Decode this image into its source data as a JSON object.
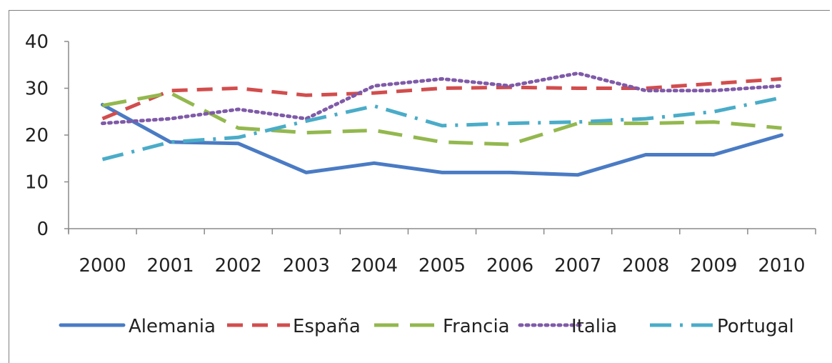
{
  "chart_data": {
    "type": "line",
    "categories": [
      "2000",
      "2001",
      "2002",
      "2003",
      "2004",
      "2005",
      "2006",
      "2007",
      "2008",
      "2009",
      "2010"
    ],
    "ylim": [
      0,
      40
    ],
    "yticks": [
      "0",
      "10",
      "20",
      "30",
      "40"
    ],
    "grid": false,
    "legend": "bottom",
    "series": [
      {
        "name": "Alemania",
        "color": "#4a7bc4",
        "style": "solid",
        "values": [
          26.5,
          18.5,
          18.2,
          12.0,
          14.0,
          12.0,
          12.0,
          11.5,
          15.8,
          15.8,
          20.0
        ]
      },
      {
        "name": "España",
        "color": "#d24d4d",
        "style": "dashed",
        "values": [
          23.5,
          29.5,
          30.0,
          28.5,
          29.0,
          30.0,
          30.2,
          30.0,
          30.0,
          31.0,
          32.0
        ]
      },
      {
        "name": "Francia",
        "color": "#93b84e",
        "style": "longdash",
        "values": [
          26.3,
          29.0,
          21.5,
          20.5,
          21.0,
          18.5,
          18.0,
          22.5,
          22.5,
          22.8,
          21.5
        ]
      },
      {
        "name": "Italia",
        "color": "#7f5aa8",
        "style": "dotted",
        "values": [
          22.5,
          23.5,
          25.5,
          23.5,
          30.5,
          32.0,
          30.5,
          33.2,
          29.5,
          29.5,
          30.5
        ]
      },
      {
        "name": "Portugal",
        "color": "#4aacc8",
        "style": "dashdot",
        "values": [
          14.8,
          18.5,
          19.5,
          23.0,
          26.2,
          22.0,
          22.5,
          22.8,
          23.5,
          25.0,
          28.0
        ]
      }
    ]
  }
}
